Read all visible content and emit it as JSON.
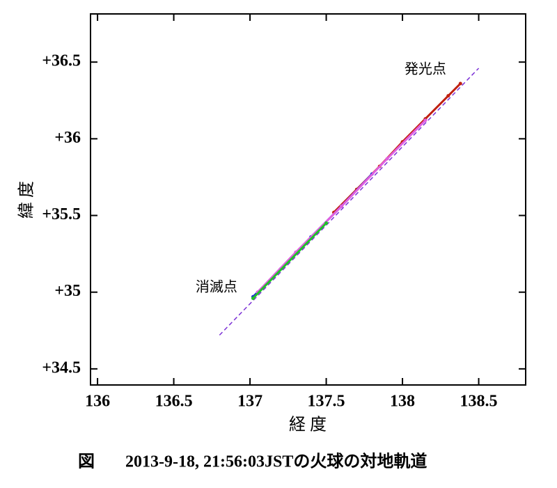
{
  "chart_data": {
    "type": "scatter",
    "xlabel": "経 度",
    "ylabel": "緯 度",
    "caption_prefix": "図",
    "caption": "2013-9-18, 21:56:03JSTの火球の対地軌道",
    "xlim": [
      135.954,
      138.808
    ],
    "ylim": [
      34.395,
      36.814
    ],
    "xticks": [
      136,
      136.5,
      137,
      137.5,
      138,
      138.5
    ],
    "yticks": [
      {
        "value": 34.5,
        "label": "+34.5"
      },
      {
        "value": 35,
        "label": "+35"
      },
      {
        "value": 35.5,
        "label": "+35.5"
      },
      {
        "value": 36,
        "label": "+36"
      },
      {
        "value": 36.5,
        "label": "+36.5"
      }
    ],
    "series": [
      {
        "color": "#7b2fd6",
        "style": "dashed",
        "x": [
          136.8,
          138.5
        ],
        "values": [
          34.72,
          36.46
        ]
      },
      {
        "color": "#c0200f",
        "style": "markers",
        "x": [
          137.55,
          137.7,
          137.85,
          138.0,
          138.15,
          138.3,
          138.38
        ],
        "values": [
          35.52,
          35.67,
          35.82,
          35.98,
          36.13,
          36.28,
          36.36
        ]
      },
      {
        "color": "#1f2fd0",
        "style": "markers",
        "x": [
          137.02,
          137.2,
          137.4,
          137.6,
          137.8
        ],
        "values": [
          34.97,
          35.15,
          35.36,
          35.56,
          35.77
        ]
      },
      {
        "color": "#e060e0",
        "style": "markers",
        "x": [
          137.05,
          137.3,
          137.6,
          137.9,
          138.15
        ],
        "values": [
          35.0,
          35.26,
          35.56,
          35.87,
          36.12
        ]
      },
      {
        "color": "#22c02a",
        "style": "markers",
        "x": [
          137.02,
          137.5
        ],
        "values": [
          34.96,
          35.45
        ]
      }
    ],
    "annotations": [
      {
        "text": "発光点",
        "x": 138.15,
        "y": 36.45
      },
      {
        "text": "消滅点",
        "x": 136.78,
        "y": 35.03
      }
    ]
  }
}
